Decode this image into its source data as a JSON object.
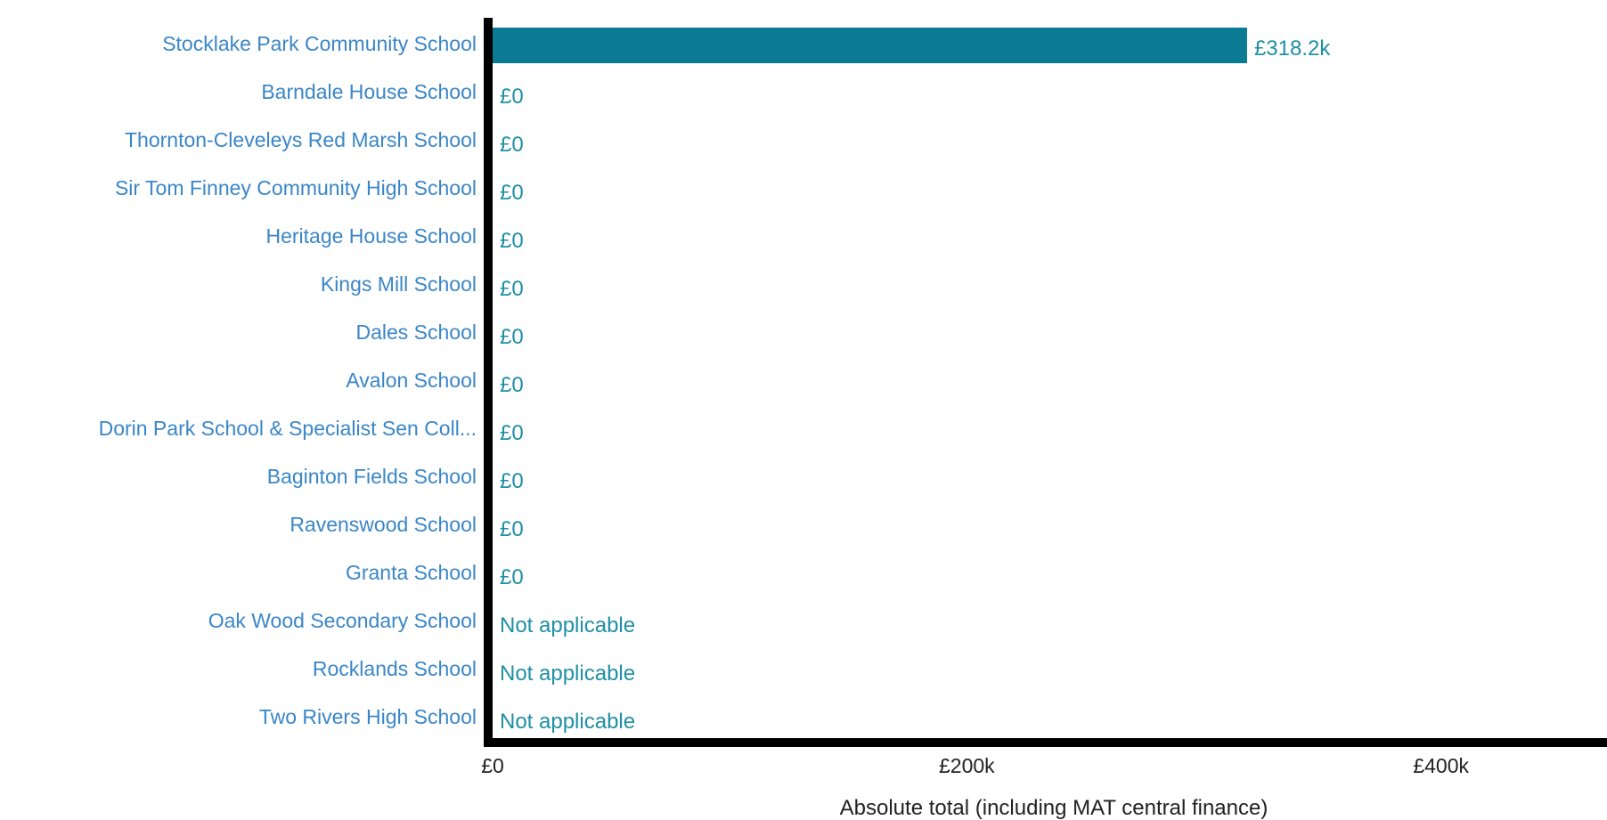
{
  "chart_data": {
    "type": "bar",
    "orientation": "horizontal",
    "categories": [
      "Stocklake Park Community School",
      "Barndale House School",
      "Thornton-Cleveleys Red Marsh School",
      "Sir Tom Finney Community High School",
      "Heritage House School",
      "Kings Mill School",
      "Dales School",
      "Avalon School",
      "Dorin Park School & Specialist Sen Coll...",
      "Baginton Fields School",
      "Ravenswood School",
      "Granta School",
      "Oak Wood Secondary School",
      "Rocklands School",
      "Two Rivers High School"
    ],
    "values": [
      318200,
      0,
      0,
      0,
      0,
      0,
      0,
      0,
      0,
      0,
      0,
      0,
      null,
      null,
      null
    ],
    "value_labels": [
      "£318.2k",
      "£0",
      "£0",
      "£0",
      "£0",
      "£0",
      "£0",
      "£0",
      "£0",
      "£0",
      "£0",
      "£0",
      "Not applicable",
      "Not applicable",
      "Not applicable"
    ],
    "xlabel": "Absolute total (including MAT central finance)",
    "xlim": [
      0,
      470000
    ],
    "x_ticks": [
      0,
      200000,
      400000
    ],
    "x_tick_labels": [
      "£0",
      "£200k",
      "£400k"
    ],
    "grid": false,
    "colors": {
      "bar": "#0b7a93",
      "category_label": "#3a86c8",
      "value_label": "#1f8fa5",
      "axis": "#000000",
      "tick_label": "#222222"
    }
  }
}
